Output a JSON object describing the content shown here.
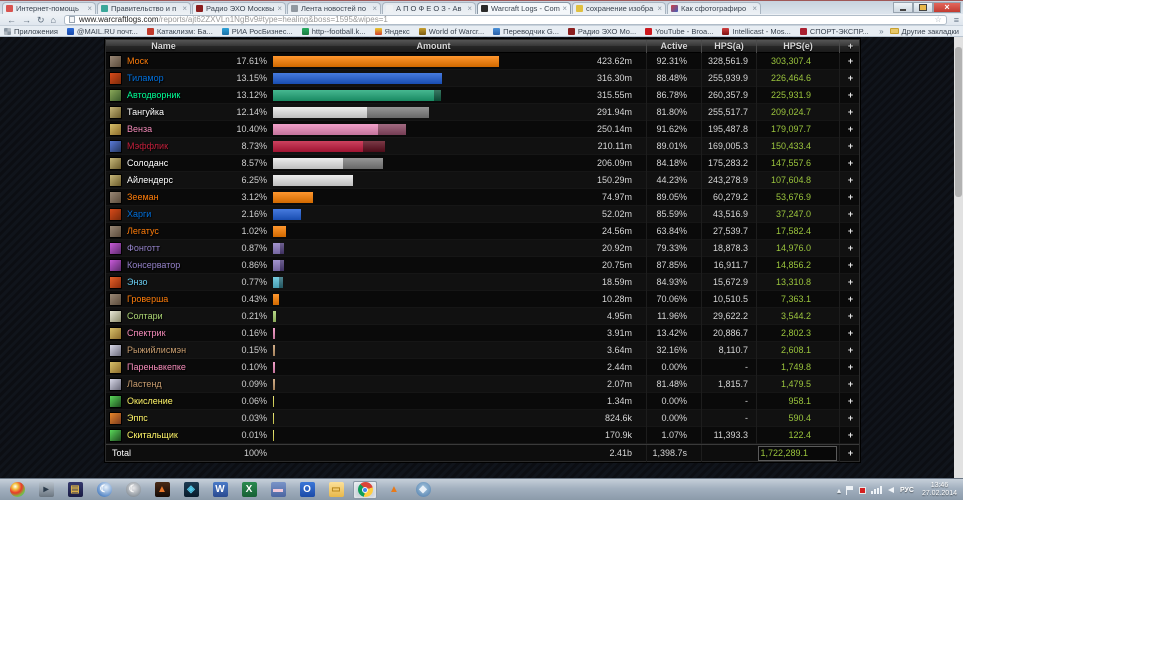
{
  "browser": {
    "tabs": [
      {
        "title": "Интернет-помощь",
        "favicon": "#d9534f",
        "active": false
      },
      {
        "title": "Правительство и п",
        "favicon": "#3aa79a",
        "active": false
      },
      {
        "title": "Радио ЭХО Москвы",
        "favicon": "#8b1e1e",
        "active": false
      },
      {
        "title": "Лента новостей по",
        "favicon": "#9098a0",
        "active": false
      },
      {
        "title": "А П О Ф Е О З - Ав",
        "favicon": "#eef1f4",
        "active": false
      },
      {
        "title": "Warcraft Logs - Com",
        "favicon": "#2a2a2a",
        "active": true
      },
      {
        "title": "сохранение изобра",
        "favicon": "#e0c040",
        "active": false
      },
      {
        "title": "Как сфотографиро",
        "favicon": "linear-gradient(135deg,#d04040,#4060c0)",
        "active": false
      }
    ],
    "controls": {
      "close": "×"
    },
    "url_domain": "www.warcraftlogs.com",
    "url_path": "/reports/ajt62ZXVLn1NgBv9#type=healing&boss=1595&wipes=1",
    "bookmarks": [
      {
        "label": "Приложения",
        "favicon": "conic-gradient(#b0b8c0 0 25%, #8a96a2 0 50%, #b0b8c0 0 75%, #8a96a2 0)"
      },
      {
        "label": "@MAIL.RU почт...",
        "favicon": "linear-gradient(#2a6ad8,#1a4aa8)"
      },
      {
        "label": "Катаклизм: Ба...",
        "favicon": "#c0392b"
      },
      {
        "label": "РИА РосБизнес...",
        "favicon": "linear-gradient(#2aa1d8,#1a71a8)"
      },
      {
        "label": "http--football.k...",
        "favicon": "linear-gradient(#27ae60,#1a7a40)"
      },
      {
        "label": "Яндекс",
        "favicon": "linear-gradient(#e8c82a,#d04030)"
      },
      {
        "label": "World of Warcr...",
        "favicon": "linear-gradient(#c8a030,#7a5a10)"
      },
      {
        "label": "Переводчик G...",
        "favicon": "linear-gradient(#4a90d8,#2a60a8)"
      },
      {
        "label": "Радио ЭХО Мо...",
        "favicon": "#8b1e1e"
      },
      {
        "label": "YouTube - Broa...",
        "favicon": "#cc181e"
      },
      {
        "label": "Intellicast - Mos...",
        "favicon": "linear-gradient(#d04040,#801010)"
      },
      {
        "label": "СПОРТ-ЭКСПР...",
        "favicon": "#aa2030"
      }
    ],
    "bookmarks_overflow": "»",
    "other_bookmarks": "Другие закладки"
  },
  "page": {
    "table": {
      "headers": {
        "name": "Name",
        "amount": "Amount",
        "active": "Active",
        "hps_a": "HPS(a)",
        "hps_e": "HPS(e)",
        "plus": "+"
      },
      "rows": [
        {
          "name": "Моск",
          "color": "#FF7D0A",
          "icon": [
            "#9a8876",
            "#5a4a3a"
          ],
          "pct": "17.61%",
          "bar_color": "#FF8000",
          "over_color": "",
          "main_w": 226,
          "over_w": 0,
          "amount": "423.62m",
          "active": "92.31%",
          "hps_a": "328,561.9",
          "hps_e": "303,307.4"
        },
        {
          "name": "Тиламор",
          "color": "#0070DD",
          "icon": [
            "#d84a1a",
            "#7a2a0a"
          ],
          "pct": "13.15%",
          "bar_color": "#1E5ED8",
          "over_color": "",
          "main_w": 169,
          "over_w": 0,
          "amount": "316.30m",
          "active": "88.48%",
          "hps_a": "255,939.9",
          "hps_e": "226,464.6"
        },
        {
          "name": "Автодворник",
          "color": "#00FF96",
          "icon": [
            "#8aa85a",
            "#3a5a2a"
          ],
          "pct": "13.12%",
          "bar_color": "#1EA878",
          "over_color": "#0E5A40",
          "main_w": 161,
          "over_w": 7,
          "amount": "315.55m",
          "active": "86.78%",
          "hps_a": "260,357.9",
          "hps_e": "225,931.9"
        },
        {
          "name": "Тангуйка",
          "color": "#FFFFFF",
          "icon": [
            "#c8b87a",
            "#6a5a2a"
          ],
          "pct": "12.14%",
          "bar_color": "#E8E8E8",
          "over_color": "#7F7F7F",
          "main_w": 94,
          "over_w": 62,
          "amount": "291.94m",
          "active": "81.80%",
          "hps_a": "255,517.7",
          "hps_e": "209,024.7"
        },
        {
          "name": "Венза",
          "color": "#F58CBA",
          "icon": [
            "#d8c06a",
            "#8a6a2a"
          ],
          "pct": "10.40%",
          "bar_color": "#EF8CBE",
          "over_color": "#8E4A66",
          "main_w": 105,
          "over_w": 28,
          "amount": "250.14m",
          "active": "91.62%",
          "hps_a": "195,487.8",
          "hps_e": "179,097.7"
        },
        {
          "name": "Мэффлик",
          "color": "#C41F3B",
          "icon": [
            "#5a7ad8",
            "#24365e"
          ],
          "pct": "8.73%",
          "bar_color": "#C2183C",
          "over_color": "#5E0E1E",
          "main_w": 90,
          "over_w": 22,
          "amount": "210.11m",
          "active": "89.01%",
          "hps_a": "169,005.3",
          "hps_e": "150,433.4"
        },
        {
          "name": "Солоданс",
          "color": "#FFFFFF",
          "icon": [
            "#c8b87a",
            "#6a5a2a"
          ],
          "pct": "8.57%",
          "bar_color": "#E8E8E8",
          "over_color": "#7F7F7F",
          "main_w": 70,
          "over_w": 40,
          "amount": "206.09m",
          "active": "84.18%",
          "hps_a": "175,283.2",
          "hps_e": "147,557.6"
        },
        {
          "name": "Айлендерс",
          "color": "#FFFFFF",
          "icon": [
            "#c8b87a",
            "#6a5a2a"
          ],
          "pct": "6.25%",
          "bar_color": "#E8E8E8",
          "over_color": "",
          "main_w": 80,
          "over_w": 0,
          "amount": "150.29m",
          "active": "44.23%",
          "hps_a": "243,278.9",
          "hps_e": "107,604.8"
        },
        {
          "name": "Зееман",
          "color": "#FF7D0A",
          "icon": [
            "#9a8876",
            "#5a4a3a"
          ],
          "pct": "3.12%",
          "bar_color": "#FF8000",
          "over_color": "",
          "main_w": 40,
          "over_w": 0,
          "amount": "74.97m",
          "active": "89.05%",
          "hps_a": "60,279.2",
          "hps_e": "53,676.9"
        },
        {
          "name": "Харги",
          "color": "#0070DD",
          "icon": [
            "#d84a1a",
            "#7a2a0a"
          ],
          "pct": "2.16%",
          "bar_color": "#1E5ED8",
          "over_color": "",
          "main_w": 28,
          "over_w": 0,
          "amount": "52.02m",
          "active": "85.59%",
          "hps_a": "43,516.9",
          "hps_e": "37,247.0"
        },
        {
          "name": "Легатус",
          "color": "#FF7D0A",
          "icon": [
            "#9a8876",
            "#5a4a3a"
          ],
          "pct": "1.02%",
          "bar_color": "#FF8000",
          "over_color": "",
          "main_w": 13,
          "over_w": 0,
          "amount": "24.56m",
          "active": "63.84%",
          "hps_a": "27,539.7",
          "hps_e": "17,582.4"
        },
        {
          "name": "Фонготт",
          "color": "#9482C9",
          "icon": [
            "#c85ad8",
            "#5a2a6a"
          ],
          "pct": "0.87%",
          "bar_color": "#8E7CC3",
          "over_color": "#4E3D78",
          "main_w": 7,
          "over_w": 4,
          "amount": "20.92m",
          "active": "79.33%",
          "hps_a": "18,878.3",
          "hps_e": "14,976.0"
        },
        {
          "name": "Консерватор",
          "color": "#9482C9",
          "icon": [
            "#c85ad8",
            "#5a2a6a"
          ],
          "pct": "0.86%",
          "bar_color": "#8E7CC3",
          "over_color": "#4E3D78",
          "main_w": 7,
          "over_w": 4,
          "amount": "20.75m",
          "active": "87.85%",
          "hps_a": "16,911.7",
          "hps_e": "14,856.2"
        },
        {
          "name": "Энзо",
          "color": "#69CCF0",
          "icon": [
            "#e8622a",
            "#8a2a0a"
          ],
          "pct": "0.77%",
          "bar_color": "#58C0D8",
          "over_color": "#2A6B78",
          "main_w": 6,
          "over_w": 4,
          "amount": "18.59m",
          "active": "84.93%",
          "hps_a": "15,672.9",
          "hps_e": "13,310.8"
        },
        {
          "name": "Гроверша",
          "color": "#FF7D0A",
          "icon": [
            "#9a8876",
            "#5a4a3a"
          ],
          "pct": "0.43%",
          "bar_color": "#FF8000",
          "over_color": "",
          "main_w": 6,
          "over_w": 0,
          "amount": "10.28m",
          "active": "70.06%",
          "hps_a": "10,510.5",
          "hps_e": "7,363.1"
        },
        {
          "name": "Солтари",
          "color": "#ABD473",
          "icon": [
            "#e8e8d8",
            "#8a8a6a"
          ],
          "pct": "0.21%",
          "bar_color": "#A8D06E",
          "over_color": "",
          "main_w": 3,
          "over_w": 0,
          "amount": "4.95m",
          "active": "11.96%",
          "hps_a": "29,622.2",
          "hps_e": "3,544.2"
        },
        {
          "name": "Спектрик",
          "color": "#F58CBA",
          "icon": [
            "#d8c06a",
            "#8a6a2a"
          ],
          "pct": "0.16%",
          "bar_color": "#EF8CBE",
          "over_color": "",
          "main_w": 2,
          "over_w": 0,
          "amount": "3.91m",
          "active": "13.42%",
          "hps_a": "20,886.7",
          "hps_e": "2,802.3"
        },
        {
          "name": "Рыжийлисмэн",
          "color": "#C79C6E",
          "icon": [
            "#d8d8e8",
            "#6a6a7a"
          ],
          "pct": "0.15%",
          "bar_color": "#C79C6E",
          "over_color": "",
          "main_w": 2,
          "over_w": 0,
          "amount": "3.64m",
          "active": "32.16%",
          "hps_a": "8,110.7",
          "hps_e": "2,608.1"
        },
        {
          "name": "Пареньвкепке",
          "color": "#F58CBA",
          "icon": [
            "#d8c06a",
            "#8a6a2a"
          ],
          "pct": "0.10%",
          "bar_color": "#EF8CBE",
          "over_color": "",
          "main_w": 2,
          "over_w": 0,
          "amount": "2.44m",
          "active": "0.00%",
          "hps_a": "-",
          "hps_e": "1,749.8"
        },
        {
          "name": "Ластенд",
          "color": "#C79C6E",
          "icon": [
            "#d8d8e8",
            "#6a6a7a"
          ],
          "pct": "0.09%",
          "bar_color": "#C79C6E",
          "over_color": "",
          "main_w": 2,
          "over_w": 0,
          "amount": "2.07m",
          "active": "81.48%",
          "hps_a": "1,815.7",
          "hps_e": "1,479.5"
        },
        {
          "name": "Окисление",
          "color": "#FFF569",
          "icon": [
            "#5ad85a",
            "#1e4a1e"
          ],
          "pct": "0.06%",
          "bar_color": "#E8E45A",
          "over_color": "",
          "main_w": 1,
          "over_w": 0,
          "amount": "1.34m",
          "active": "0.00%",
          "hps_a": "-",
          "hps_e": "958.1"
        },
        {
          "name": "Эппс",
          "color": "#FFF569",
          "icon": [
            "#e8862a",
            "#7a3a1e"
          ],
          "pct": "0.03%",
          "bar_color": "#E8E45A",
          "over_color": "",
          "main_w": 1,
          "over_w": 0,
          "amount": "824.6k",
          "active": "0.00%",
          "hps_a": "-",
          "hps_e": "590.4"
        },
        {
          "name": "Скитальщик",
          "color": "#FFF569",
          "icon": [
            "#5ad85a",
            "#1e4a1e"
          ],
          "pct": "0.01%",
          "bar_color": "#E8E45A",
          "over_color": "",
          "main_w": 1,
          "over_w": 0,
          "amount": "170.9k",
          "active": "1.07%",
          "hps_a": "11,393.3",
          "hps_e": "122.4"
        }
      ],
      "total": {
        "label": "Total",
        "pct": "100%",
        "amount": "2.41b",
        "active": "1,398.7s",
        "hps_a": "",
        "hps_e": "1,722,289.1",
        "plus": "+"
      }
    }
  },
  "taskbar": {
    "icons": [
      {
        "name": "start-orb",
        "bg": "radial-gradient(circle at 35% 30%, #ffffff 0%, #f3c642 20%, #e8382a 45%, #7ac143 70%, #2a7de1 100%)",
        "ball": true,
        "glyph": "",
        "gc": ""
      },
      {
        "name": "media-player-icon",
        "bg": "linear-gradient(#b8c2cc,#6a7580)",
        "glyph": "▸",
        "gc": "#2a3a4a"
      },
      {
        "name": "winrar-icon",
        "bg": "linear-gradient(#34386e,#191c44)",
        "glyph": "▤",
        "gc": "#d8b04a"
      },
      {
        "name": "comet-swirl-icon",
        "bg": "radial-gradient(circle at 60% 35%, #e8f2fc, #5a8ac8 70%, #2a5a98)",
        "ball": true,
        "glyph": "☾",
        "gc": "#ffffff"
      },
      {
        "name": "silver-swirl-icon",
        "bg": "radial-gradient(circle at 50% 40%, #e8e8ea, #9098a0 70%, #606870)",
        "ball": true,
        "glyph": "☾",
        "gc": "#f8f8f8"
      },
      {
        "name": "flame-app-icon",
        "bg": "linear-gradient(#4a2a16,#140a06)",
        "glyph": "▲",
        "gc": "#e8762a"
      },
      {
        "name": "wow-app-icon",
        "bg": "linear-gradient(#1c3a52,#081a2a)",
        "glyph": "◈",
        "gc": "#54c8e8"
      },
      {
        "name": "word-icon",
        "bg": "linear-gradient(#4a7ac8,#2a4a90)",
        "glyph": "W",
        "gc": "#ffffff"
      },
      {
        "name": "excel-icon",
        "bg": "linear-gradient(#2a8a50,#176034)",
        "glyph": "X",
        "gc": "#ffffff"
      },
      {
        "name": "floppy-save-icon",
        "bg": "linear-gradient(#7a94c8,#4a64a0)",
        "glyph": "▬",
        "gc": "#f0c8da"
      },
      {
        "name": "outlook-icon",
        "bg": "linear-gradient(#3a76d8,#1a4aa8)",
        "glyph": "O",
        "gc": "#ffffff"
      },
      {
        "name": "explorer-folder-icon",
        "bg": "linear-gradient(#fce09a,#e8b84a)",
        "glyph": "▭",
        "gc": "#b8861b"
      },
      {
        "name": "chrome-icon",
        "bg": "conic-gradient(from -45deg, #db4437 0 33%, #ffcd40 0 66%, #0f9d58 0)",
        "ball": true,
        "center": true,
        "active": true,
        "glyph": "",
        "gc": ""
      },
      {
        "name": "vlc-icon",
        "bg": "none",
        "glyph": "▲",
        "gc": "#e87a1a"
      },
      {
        "name": "utility-icon",
        "bg": "radial-gradient(circle at 50% 40%, #a8c8e0, #4a78a8)",
        "ball": true,
        "glyph": "◆",
        "gc": "#e8f0f8"
      }
    ],
    "tray": {
      "expand": "▴",
      "lang": "РУС",
      "time": "13:46",
      "date": "27.02.2014"
    }
  }
}
